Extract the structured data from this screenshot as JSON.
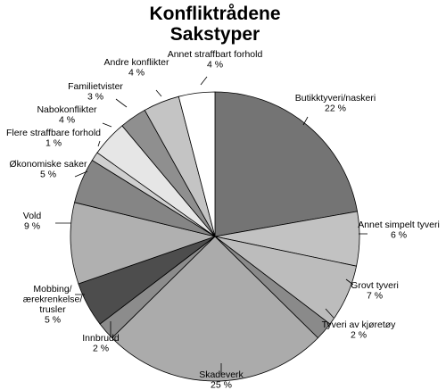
{
  "chart_data": {
    "type": "pie",
    "title": [
      "Konfliktrådene",
      "Sakstyper"
    ],
    "slices": [
      {
        "name": "Butikktyveri/naskeri",
        "value": 22,
        "label": "22 %",
        "color": "#747474"
      },
      {
        "name": "Annet simpelt tyveri",
        "value": 6,
        "label": "6 %",
        "color": "#c2c2c2"
      },
      {
        "name": "Grovt tyveri",
        "value": 7,
        "label": "7 %",
        "color": "#bcbcbc"
      },
      {
        "name": "Tyveri av kjøretøy",
        "value": 2,
        "label": "2 %",
        "color": "#8a8a8a"
      },
      {
        "name": "Skadeverk",
        "value": 25,
        "label": "25 %",
        "color": "#ababab"
      },
      {
        "name": "Innbrudd",
        "value": 2,
        "label": "2 %",
        "color": "#8c8c8c"
      },
      {
        "name": "Mobbing/ ærekrenkelse/ trusler",
        "value": 5,
        "label": "5 %",
        "color": "#4d4d4d"
      },
      {
        "name": "Vold",
        "value": 9,
        "label": "9 %",
        "color": "#b0b0b0"
      },
      {
        "name": "Økonomiske saker",
        "value": 5,
        "label": "5 %",
        "color": "#858585"
      },
      {
        "name": "Flere straffbare forhold",
        "value": 1,
        "label": "1 %",
        "color": "#cfcfcf"
      },
      {
        "name": "Nabokonflikter",
        "value": 4,
        "label": "4 %",
        "color": "#e6e6e6"
      },
      {
        "name": "Familietvister",
        "value": 3,
        "label": "3 %",
        "color": "#8f8f8f"
      },
      {
        "name": "Andre konflikter",
        "value": 4,
        "label": "4 %",
        "color": "#c4c4c4"
      },
      {
        "name": "Annet straffbart forhold",
        "value": 4,
        "label": "4 %",
        "color": "#ffffff"
      }
    ]
  }
}
